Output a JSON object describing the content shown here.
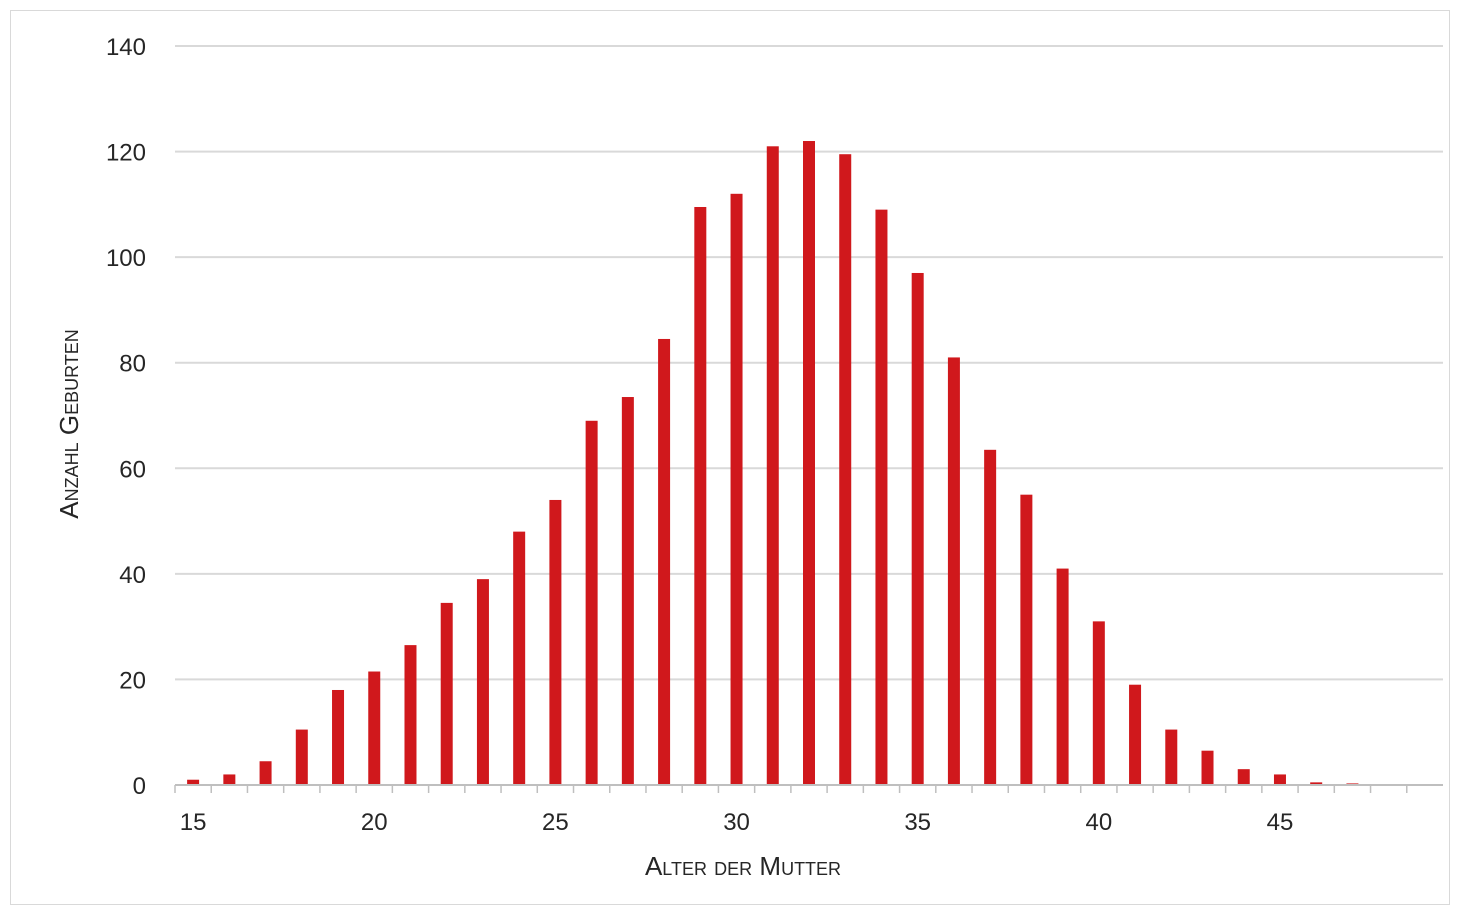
{
  "chart_data": {
    "type": "bar",
    "xlabel": "Alter der Mutter",
    "ylabel": "Anzahl Geburten",
    "x": [
      15,
      16,
      17,
      18,
      19,
      20,
      21,
      22,
      23,
      24,
      25,
      26,
      27,
      28,
      29,
      30,
      31,
      32,
      33,
      34,
      35,
      36,
      37,
      38,
      39,
      40,
      41,
      42,
      43,
      44,
      45,
      46,
      47,
      48
    ],
    "values": [
      1,
      2,
      4.5,
      10.5,
      18,
      21.5,
      26.5,
      34.5,
      39,
      48,
      54,
      69,
      73.5,
      84.5,
      109.5,
      112,
      121,
      122,
      119.5,
      109,
      97,
      81,
      63.5,
      55,
      41,
      31,
      19,
      10.5,
      6.5,
      3,
      2,
      0.5,
      0.3,
      0
    ],
    "x_ticks": [
      15,
      20,
      25,
      30,
      35,
      40,
      45
    ],
    "y_ticks": [
      0,
      20,
      40,
      60,
      80,
      100,
      120,
      140
    ],
    "xlim": [
      14.5,
      49.5
    ],
    "ylim": [
      0,
      140
    ],
    "grid": "horizontal",
    "legend": "none",
    "bar_color": "#d0181c",
    "grid_color": "#d9d9d9",
    "axis_color": "#bfbfbf"
  }
}
